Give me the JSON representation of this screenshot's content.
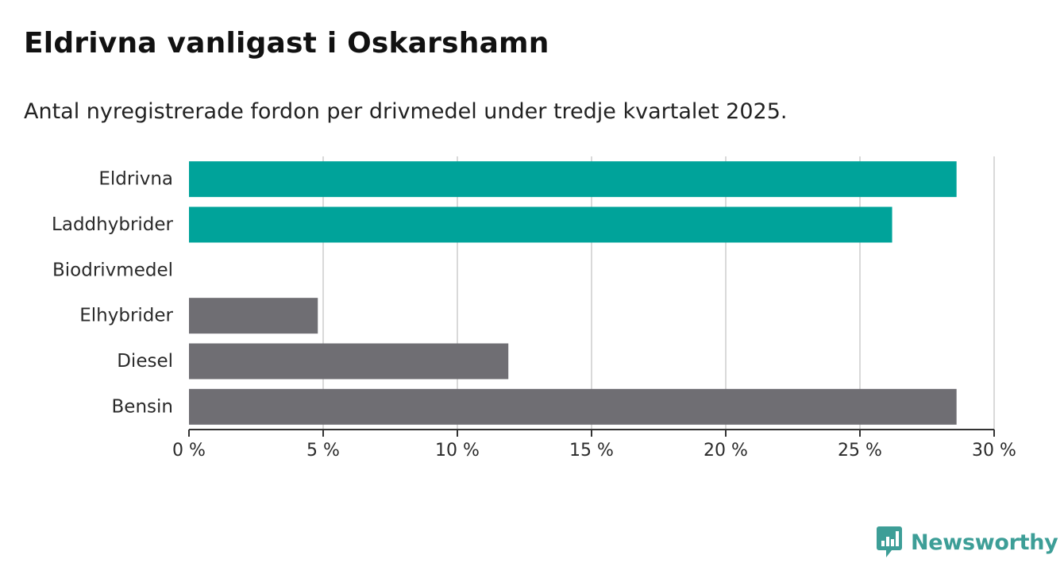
{
  "title": "Eldrivna vanligast i Oskarshamn",
  "subtitle": "Antal nyregistrerade fordon per drivmedel under tredje kvartalet 2025.",
  "brand": {
    "name": "Newsworthy",
    "color": "#3d9e97",
    "icon": "newsworthy-logo-icon"
  },
  "colors": {
    "highlight": "#00a39a",
    "default": "#6f6e73",
    "grid": "#d9d9d9",
    "axis": "#333333"
  },
  "chart_data": {
    "type": "bar",
    "orientation": "horizontal",
    "categories": [
      "Eldrivna",
      "Laddhybrider",
      "Biodrivmedel",
      "Elhybrider",
      "Diesel",
      "Bensin"
    ],
    "values": [
      28.6,
      26.2,
      0,
      4.8,
      11.9,
      28.6
    ],
    "highlighted": [
      true,
      true,
      true,
      false,
      false,
      false
    ],
    "unit": "%",
    "xlim": [
      0,
      30
    ],
    "xticks": [
      0,
      5,
      10,
      15,
      20,
      25,
      30
    ],
    "xtick_labels": [
      "0 %",
      "5 %",
      "10 %",
      "15 %",
      "20 %",
      "25 %",
      "30 %"
    ],
    "grid": true,
    "legend": "none"
  }
}
